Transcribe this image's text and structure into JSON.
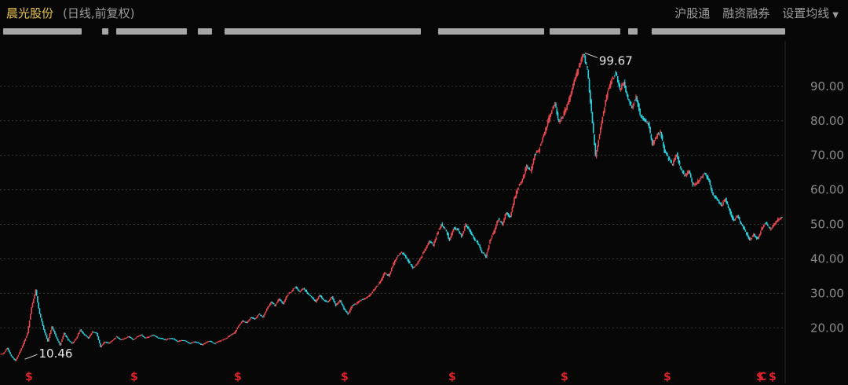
{
  "header": {
    "stock_name": "晨光股份",
    "subtitle": "(日线,前复权)",
    "actions": [
      "沪股通",
      "融资融券",
      "设置均线"
    ]
  },
  "colors": {
    "up": "#e8494f",
    "down": "#27d3e0",
    "background": "#070707",
    "grid": "#3a3a3a",
    "title": "#e8c34d",
    "marker": "#e0222a",
    "marker_alt": "#e03bd0"
  },
  "chart_data": {
    "type": "line",
    "title": "",
    "xlabel": "",
    "ylabel": "",
    "ylim": [
      8.0,
      102.5
    ],
    "yticks": [
      20,
      30,
      40,
      50,
      60,
      70,
      80,
      90
    ],
    "ytick_labels": [
      "20.00",
      "30.00",
      "40.00",
      "50.00",
      "60.00",
      "70.00",
      "80.00",
      "90.00"
    ],
    "grid": true,
    "annotations": [
      {
        "label": "99.67",
        "value": 99.67,
        "kind": "max"
      },
      {
        "label": "10.46",
        "value": 10.46,
        "kind": "min"
      }
    ],
    "event_markers": [
      "S",
      "S",
      "S",
      "S",
      "S",
      "S",
      "S",
      "S",
      "C",
      "S"
    ],
    "series": [
      {
        "values": [
          12.5,
          14.2,
          11.8,
          10.46,
          12.8,
          15.5,
          18.5,
          26.0,
          31.0,
          24.0,
          19.5,
          16.0,
          20.5,
          17.5,
          15.0,
          18.5,
          16.5,
          15.5,
          17.0,
          19.5,
          18.0,
          17.0,
          19.0,
          18.5,
          14.5,
          16.0,
          15.5,
          16.5,
          17.5,
          16.5,
          17.0,
          17.5,
          16.5,
          17.5,
          18.0,
          17.0,
          17.5,
          18.0,
          17.2,
          17.0,
          16.5,
          17.0,
          16.8,
          16.0,
          16.5,
          16.2,
          15.5,
          16.0,
          15.8,
          15.0,
          15.8,
          16.2,
          15.5,
          16.0,
          16.5,
          17.0,
          18.0,
          18.5,
          20.5,
          22.0,
          21.5,
          23.0,
          22.5,
          24.0,
          23.0,
          25.5,
          27.5,
          26.5,
          28.5,
          27.0,
          29.5,
          30.5,
          32.0,
          30.5,
          31.5,
          30.0,
          29.0,
          27.5,
          29.5,
          28.0,
          27.5,
          29.0,
          26.5,
          28.0,
          25.5,
          24.0,
          26.5,
          27.0,
          28.0,
          28.5,
          29.0,
          30.5,
          32.0,
          33.5,
          36.0,
          35.0,
          38.0,
          40.5,
          42.0,
          41.0,
          39.0,
          37.5,
          38.5,
          40.5,
          43.0,
          45.0,
          44.0,
          47.5,
          50.0,
          48.5,
          45.5,
          49.0,
          48.5,
          46.5,
          50.0,
          48.0,
          46.0,
          44.5,
          42.0,
          40.5,
          45.5,
          48.0,
          51.5,
          50.0,
          53.5,
          52.0,
          57.5,
          61.0,
          63.0,
          67.0,
          65.5,
          70.0,
          71.5,
          75.0,
          78.5,
          82.5,
          85.0,
          79.5,
          81.5,
          84.5,
          88.0,
          92.5,
          96.0,
          99.67,
          95.0,
          82.5,
          70.0,
          76.0,
          83.0,
          88.5,
          92.0,
          94.0,
          89.0,
          91.0,
          86.5,
          84.0,
          87.0,
          82.0,
          80.0,
          79.5,
          73.0,
          75.5,
          77.0,
          71.0,
          69.0,
          67.5,
          70.5,
          66.0,
          64.0,
          65.5,
          61.5,
          62.0,
          63.5,
          65.0,
          62.5,
          58.5,
          57.0,
          55.5,
          57.5,
          54.0,
          51.0,
          52.5,
          50.0,
          48.0,
          45.5,
          47.0,
          45.5,
          49.0,
          50.5,
          48.5,
          50.0,
          51.5,
          52.0
        ]
      }
    ]
  }
}
